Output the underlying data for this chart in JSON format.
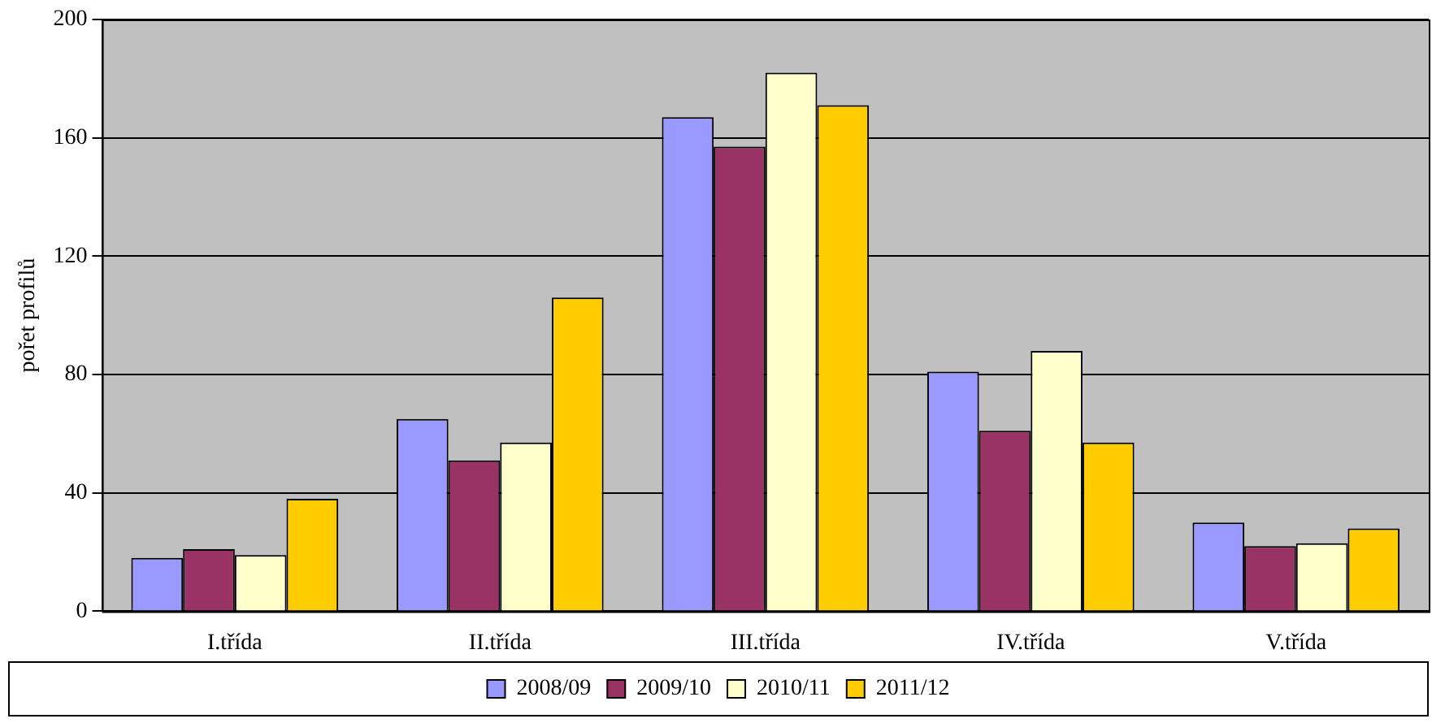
{
  "chart_data": {
    "type": "bar",
    "ylabel": "pořet profilů",
    "categories": [
      "I.třída",
      "II.třída",
      "III.třída",
      "IV.třída",
      "V.třída"
    ],
    "series": [
      {
        "name": "2008/09",
        "color": "#9999ff",
        "values": [
          18,
          65,
          167,
          81,
          30
        ]
      },
      {
        "name": "2009/10",
        "color": "#993366",
        "values": [
          21,
          51,
          157,
          61,
          22
        ]
      },
      {
        "name": "2010/11",
        "color": "#ffffcc",
        "values": [
          19,
          57,
          182,
          88,
          23
        ]
      },
      {
        "name": "2011/12",
        "color": "#ffcc00",
        "values": [
          38,
          106,
          171,
          57,
          28
        ]
      }
    ],
    "ylim": [
      0,
      200
    ],
    "yticks": [
      0,
      40,
      80,
      120,
      160,
      200
    ],
    "grid": "y",
    "legend": "bottom"
  }
}
